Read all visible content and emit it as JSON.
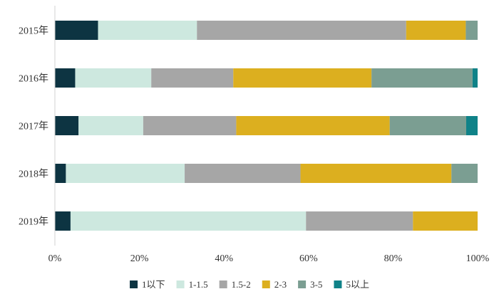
{
  "chart_data": {
    "type": "bar",
    "orientation": "horizontal",
    "stacked": true,
    "normalized": true,
    "categories": [
      "2015年",
      "2016年",
      "2017年",
      "2018年",
      "2019年"
    ],
    "x_ticks": [
      "0%",
      "20%",
      "40%",
      "60%",
      "80%",
      "100%"
    ],
    "xlim": [
      0,
      100
    ],
    "grid": false,
    "legend_position": "bottom",
    "series": [
      {
        "name": "1以下",
        "color": "#0d3442",
        "values": [
          10.2,
          4.8,
          5.6,
          2.6,
          3.7
        ]
      },
      {
        "name": "1-1.5",
        "color": "#cde8df",
        "values": [
          23.4,
          18.0,
          15.3,
          28.1,
          55.7
        ]
      },
      {
        "name": "1.5-2",
        "color": "#a6a6a6",
        "values": [
          49.5,
          19.4,
          22.0,
          27.4,
          25.3
        ]
      },
      {
        "name": "2-3",
        "color": "#dcaf1f",
        "values": [
          14.1,
          32.7,
          36.3,
          35.7,
          15.3
        ]
      },
      {
        "name": "3-5",
        "color": "#7b9e92",
        "values": [
          2.8,
          23.9,
          18.1,
          6.2,
          0.0
        ]
      },
      {
        "name": "5以上",
        "color": "#0f8288",
        "values": [
          0.0,
          1.2,
          2.7,
          0.0,
          0.0
        ]
      }
    ]
  }
}
